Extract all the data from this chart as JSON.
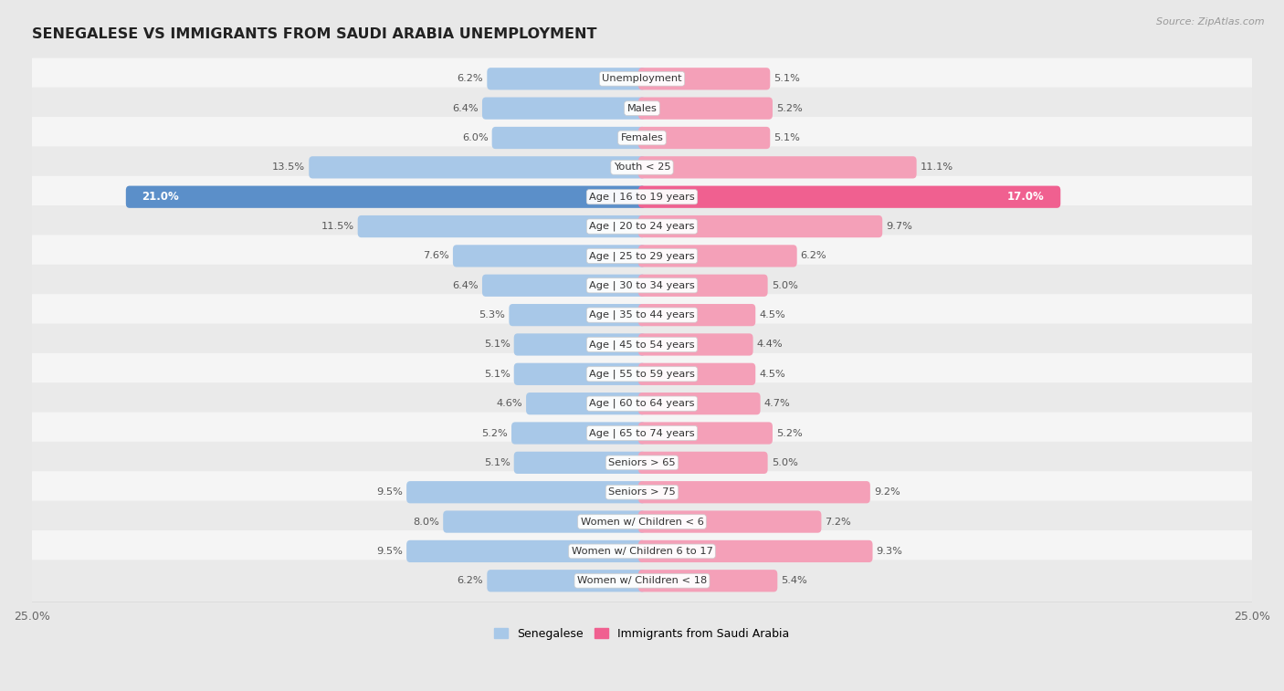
{
  "title": "SENEGALESE VS IMMIGRANTS FROM SAUDI ARABIA UNEMPLOYMENT",
  "source": "Source: ZipAtlas.com",
  "categories": [
    "Unemployment",
    "Males",
    "Females",
    "Youth < 25",
    "Age | 16 to 19 years",
    "Age | 20 to 24 years",
    "Age | 25 to 29 years",
    "Age | 30 to 34 years",
    "Age | 35 to 44 years",
    "Age | 45 to 54 years",
    "Age | 55 to 59 years",
    "Age | 60 to 64 years",
    "Age | 65 to 74 years",
    "Seniors > 65",
    "Seniors > 75",
    "Women w/ Children < 6",
    "Women w/ Children 6 to 17",
    "Women w/ Children < 18"
  ],
  "senegalese": [
    6.2,
    6.4,
    6.0,
    13.5,
    21.0,
    11.5,
    7.6,
    6.4,
    5.3,
    5.1,
    5.1,
    4.6,
    5.2,
    5.1,
    9.5,
    8.0,
    9.5,
    6.2
  ],
  "immigrants": [
    5.1,
    5.2,
    5.1,
    11.1,
    17.0,
    9.7,
    6.2,
    5.0,
    4.5,
    4.4,
    4.5,
    4.7,
    5.2,
    5.0,
    9.2,
    7.2,
    9.3,
    5.4
  ],
  "color_senegalese": "#a8c8e8",
  "color_immigrants": "#f4a0b8",
  "color_highlight_sen": "#5b8fc9",
  "color_highlight_imm": "#f06090",
  "highlight_row": 4,
  "xlim": 25.0,
  "bg_color": "#e8e8e8",
  "row_color_odd": "#f5f5f5",
  "row_color_even": "#eaeaea"
}
